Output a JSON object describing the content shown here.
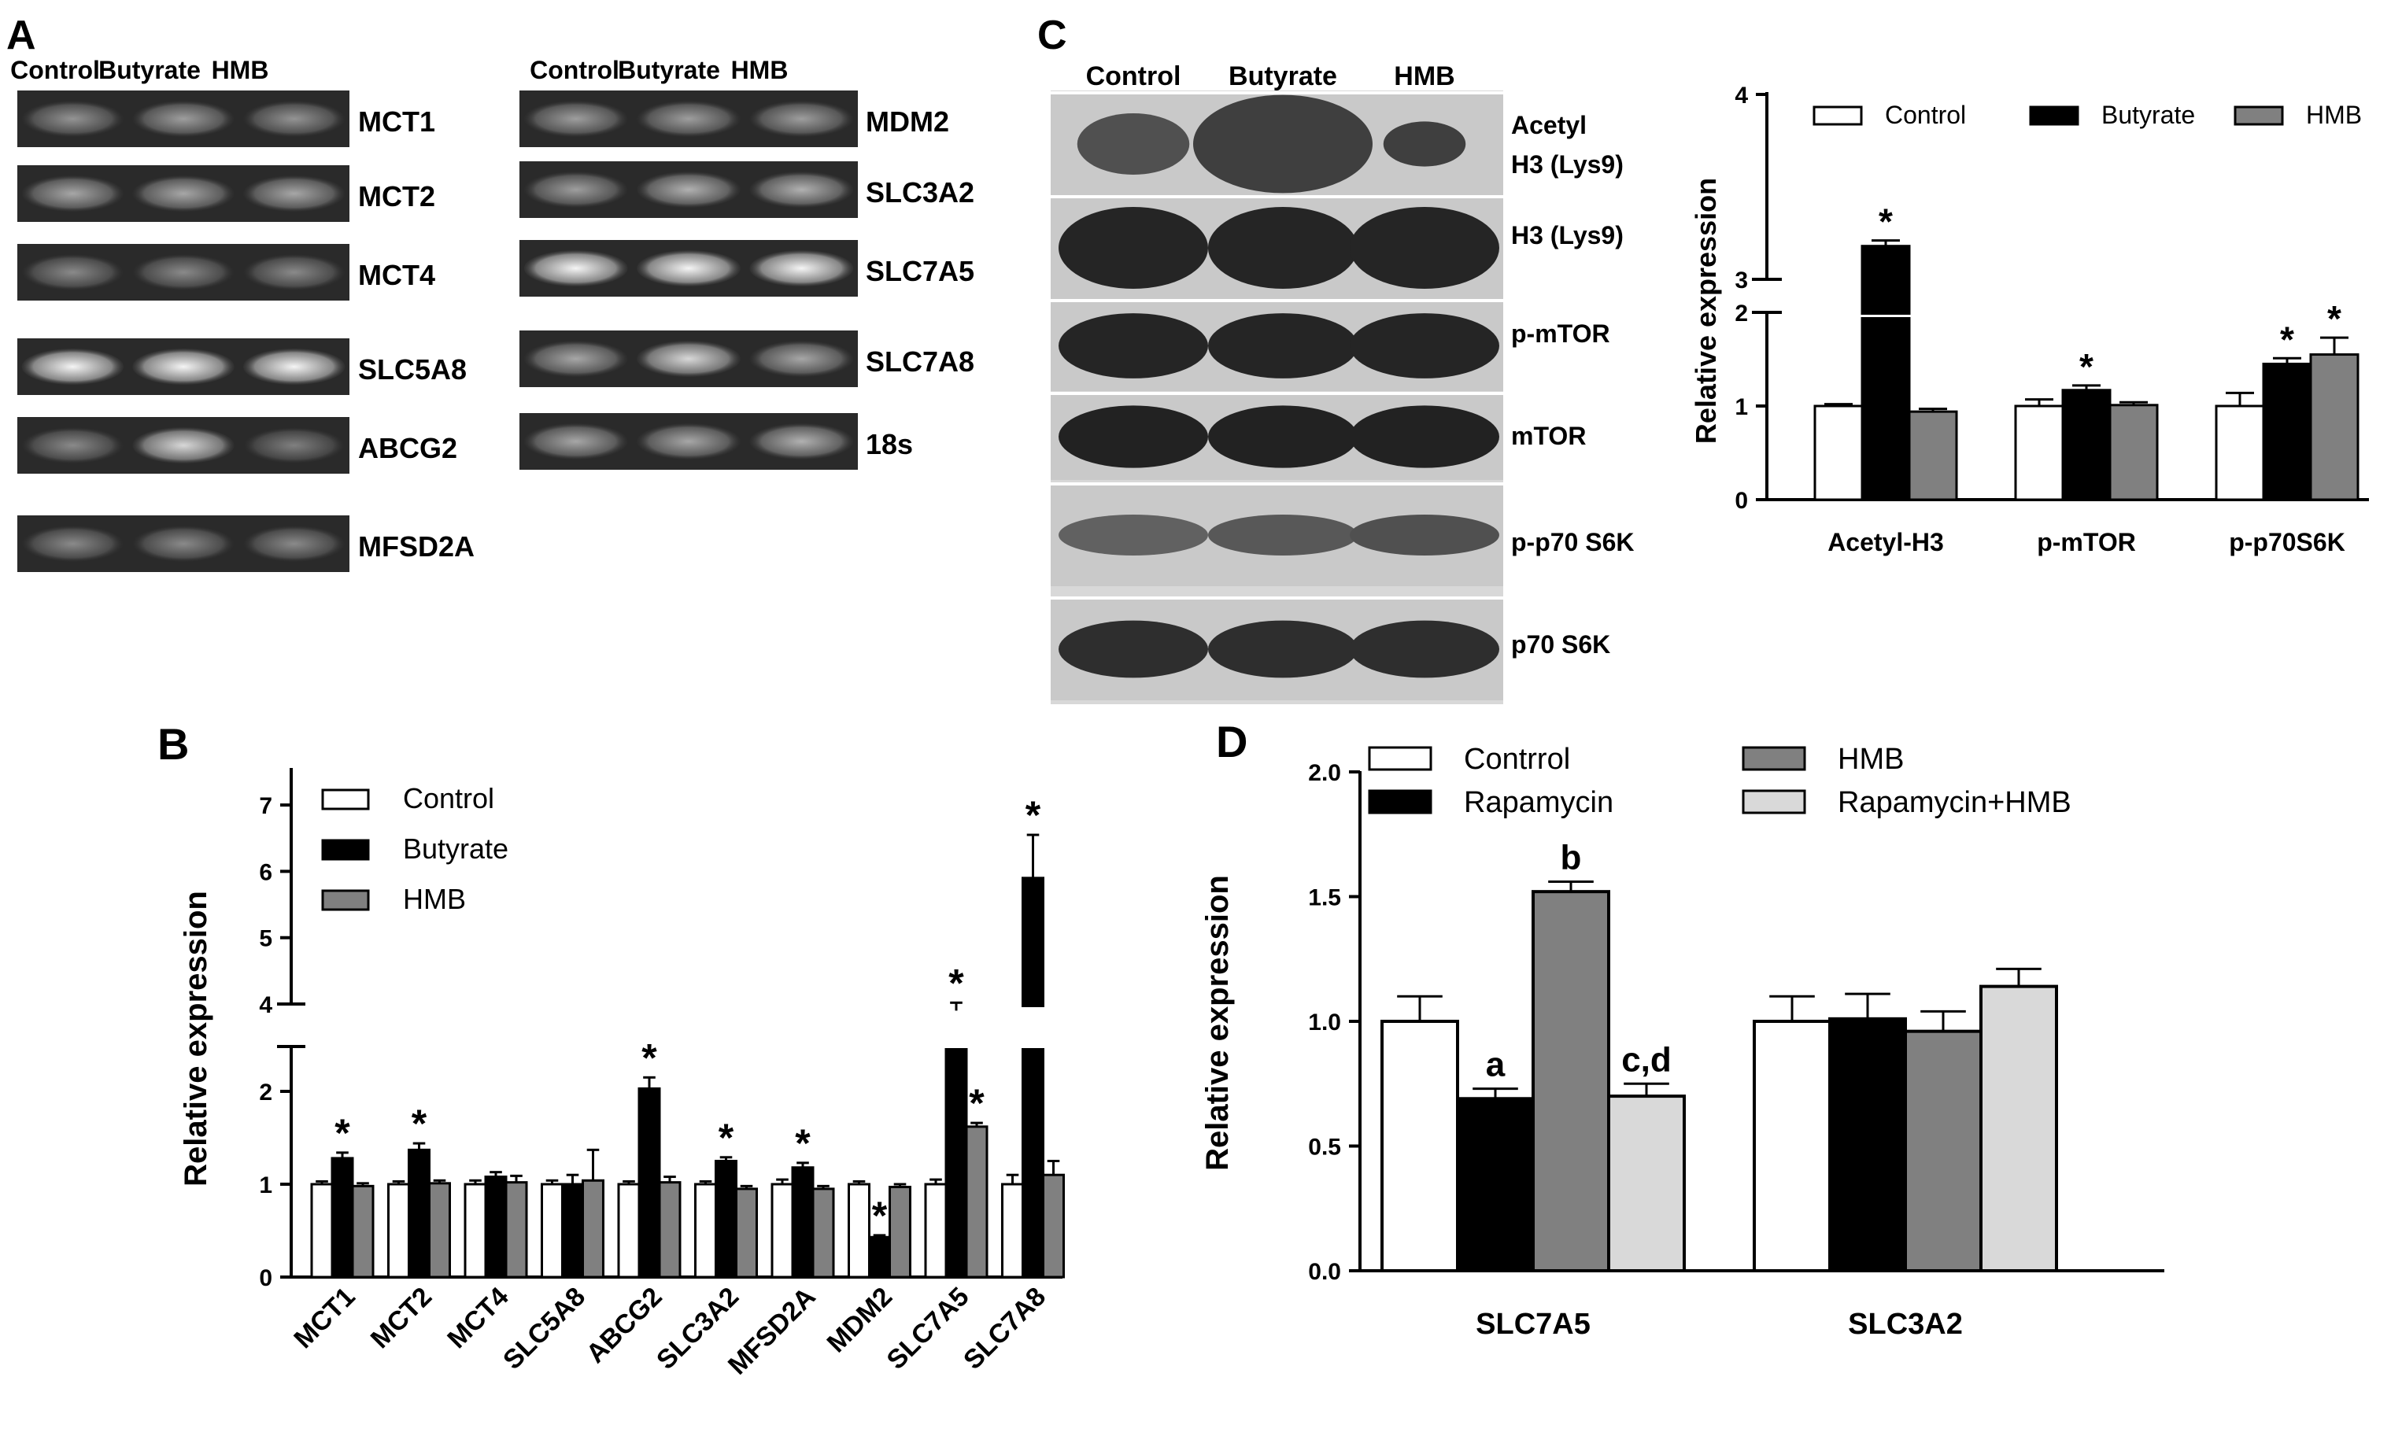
{
  "panelA": {
    "label": "A",
    "header_left": [
      "Control",
      "Butyrate",
      "HMB"
    ],
    "header_right": [
      "Control",
      "Butyrate",
      "HMB"
    ],
    "genes_left": [
      "MCT1",
      "MCT2",
      "MCT4",
      "SLC5A8",
      "ABCG2",
      "MFSD2A"
    ],
    "genes_right": [
      "MDM2",
      "SLC3A2",
      "SLC7A5",
      "SLC7A8",
      "18s"
    ]
  },
  "panelC_blot": {
    "label": "C",
    "header": [
      "Control",
      "Butyrate",
      "HMB"
    ],
    "rows": [
      "Acetyl\nH3 (Lys9)",
      "H3 (Lys9)",
      "p-mTOR",
      "mTOR",
      "p-p70 S6K",
      "p70 S6K"
    ]
  },
  "chart_data": [
    {
      "panel": "B",
      "type": "bar",
      "ylabel": "Relative expression",
      "categories": [
        "MCT1",
        "MCT2",
        "MCT4",
        "SLC5A8",
        "ABCG2",
        "SLC3A2",
        "MFSD2A",
        "MDM2",
        "SLC7A5",
        "SLC7A8"
      ],
      "series": [
        {
          "name": "Control",
          "color": "#ffffff",
          "values": [
            1,
            1,
            1,
            1,
            1,
            1,
            1,
            1,
            1,
            1
          ],
          "errors": [
            0.03,
            0.03,
            0.04,
            0.04,
            0.03,
            0.03,
            0.05,
            0.03,
            0.05,
            0.1
          ],
          "sig": [
            false,
            false,
            false,
            false,
            false,
            false,
            false,
            false,
            false,
            false
          ]
        },
        {
          "name": "Butyrate",
          "color": "#000000",
          "values": [
            1.28,
            1.37,
            1.08,
            1.0,
            2.03,
            1.25,
            1.18,
            0.43,
            3.9,
            5.9
          ],
          "errors": [
            0.06,
            0.07,
            0.05,
            0.1,
            0.12,
            0.04,
            0.05,
            0.02,
            0.12,
            0.65
          ],
          "sig": [
            true,
            true,
            false,
            false,
            true,
            true,
            true,
            true,
            true,
            true
          ]
        },
        {
          "name": "HMB",
          "color": "#808080",
          "values": [
            0.98,
            1.01,
            1.02,
            1.04,
            1.02,
            0.95,
            0.95,
            0.97,
            1.62,
            1.1
          ],
          "errors": [
            0.03,
            0.03,
            0.07,
            0.33,
            0.06,
            0.03,
            0.03,
            0.03,
            0.04,
            0.15
          ],
          "sig": [
            false,
            false,
            false,
            false,
            false,
            false,
            false,
            false,
            true,
            false
          ]
        }
      ],
      "yticks": [
        0,
        1,
        2,
        4,
        5,
        6,
        7
      ],
      "ybreak": [
        2.5,
        3.5
      ],
      "ylim": [
        0,
        7
      ],
      "legend": "top-left"
    },
    {
      "panel": "C",
      "type": "bar",
      "ylabel": "Relative expression",
      "categories": [
        "Acetyl-H3",
        "p-mTOR",
        "p-p70S6K"
      ],
      "series": [
        {
          "name": "Control",
          "color": "#ffffff",
          "values": [
            1.0,
            1.0,
            1.0
          ],
          "errors": [
            0.02,
            0.07,
            0.14
          ],
          "sig": [
            false,
            false,
            false
          ]
        },
        {
          "name": "Butyrate",
          "color": "#000000",
          "values": [
            3.18,
            1.17,
            1.45
          ],
          "errors": [
            0.03,
            0.05,
            0.06
          ],
          "sig": [
            true,
            true,
            true
          ]
        },
        {
          "name": "HMB",
          "color": "#808080",
          "values": [
            0.94,
            1.01,
            1.55
          ],
          "errors": [
            0.03,
            0.03,
            0.18
          ],
          "sig": [
            false,
            false,
            true
          ]
        }
      ],
      "yticks": [
        0,
        1,
        2,
        3,
        4
      ],
      "ybreak": [
        2,
        3
      ],
      "ylim": [
        0,
        4
      ],
      "legend": "top"
    },
    {
      "panel": "D",
      "type": "bar",
      "ylabel": "Relative expression",
      "categories": [
        "SLC7A5",
        "SLC3A2"
      ],
      "series": [
        {
          "name": "Contrrol",
          "color": "#ffffff",
          "values": [
            1.0,
            1.0
          ],
          "errors": [
            0.1,
            0.1
          ]
        },
        {
          "name": "Rapamycin",
          "color": "#000000",
          "values": [
            0.69,
            1.01
          ],
          "errors": [
            0.04,
            0.1
          ]
        },
        {
          "name": "HMB",
          "color": "#808080",
          "values": [
            1.52,
            0.96
          ],
          "errors": [
            0.04,
            0.08
          ]
        },
        {
          "name": "Rapamycin+HMB",
          "color": "#d9d9d9",
          "values": [
            0.7,
            1.14
          ],
          "errors": [
            0.05,
            0.07
          ]
        }
      ],
      "annotations": [
        {
          "series": 1,
          "category": 0,
          "text": "a"
        },
        {
          "series": 2,
          "category": 0,
          "text": "b"
        },
        {
          "series": 3,
          "category": 0,
          "text": "c,d"
        }
      ],
      "yticks": [
        "0.0",
        "0.5",
        "1.0",
        "1.5",
        "2.0"
      ],
      "ylim": [
        0,
        2
      ],
      "legend": "top"
    }
  ],
  "labels": {
    "B": "B",
    "D": "D",
    "star": "*"
  }
}
